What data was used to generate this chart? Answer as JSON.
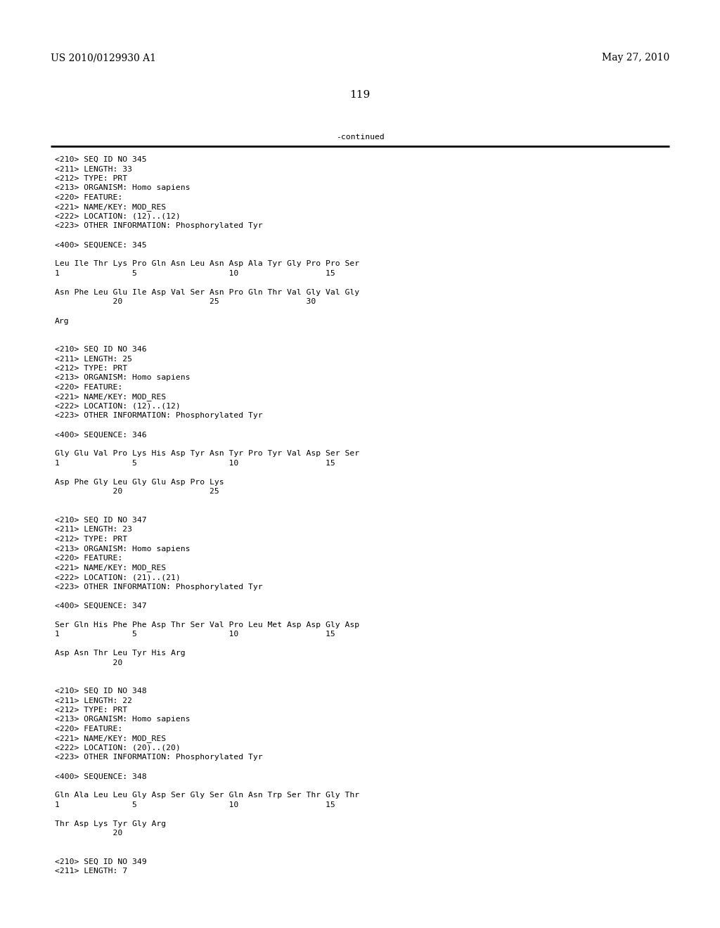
{
  "header_left": "US 2010/0129930 A1",
  "header_right": "May 27, 2010",
  "page_number": "119",
  "continued_text": "-continued",
  "background_color": "#ffffff",
  "text_color": "#000000",
  "font_size_header": 10.0,
  "font_size_body": 8.2,
  "font_size_page": 11.0,
  "content": [
    "<210> SEQ ID NO 345",
    "<211> LENGTH: 33",
    "<212> TYPE: PRT",
    "<213> ORGANISM: Homo sapiens",
    "<220> FEATURE:",
    "<221> NAME/KEY: MOD_RES",
    "<222> LOCATION: (12)..(12)",
    "<223> OTHER INFORMATION: Phosphorylated Tyr",
    "",
    "<400> SEQUENCE: 345",
    "",
    "Leu Ile Thr Lys Pro Gln Asn Leu Asn Asp Ala Tyr Gly Pro Pro Ser",
    "1               5                   10                  15",
    "",
    "Asn Phe Leu Glu Ile Asp Val Ser Asn Pro Gln Thr Val Gly Val Gly",
    "            20                  25                  30",
    "",
    "Arg",
    "",
    "",
    "<210> SEQ ID NO 346",
    "<211> LENGTH: 25",
    "<212> TYPE: PRT",
    "<213> ORGANISM: Homo sapiens",
    "<220> FEATURE:",
    "<221> NAME/KEY: MOD_RES",
    "<222> LOCATION: (12)..(12)",
    "<223> OTHER INFORMATION: Phosphorylated Tyr",
    "",
    "<400> SEQUENCE: 346",
    "",
    "Gly Glu Val Pro Lys His Asp Tyr Asn Tyr Pro Tyr Val Asp Ser Ser",
    "1               5                   10                  15",
    "",
    "Asp Phe Gly Leu Gly Glu Asp Pro Lys",
    "            20                  25",
    "",
    "",
    "<210> SEQ ID NO 347",
    "<211> LENGTH: 23",
    "<212> TYPE: PRT",
    "<213> ORGANISM: Homo sapiens",
    "<220> FEATURE:",
    "<221> NAME/KEY: MOD_RES",
    "<222> LOCATION: (21)..(21)",
    "<223> OTHER INFORMATION: Phosphorylated Tyr",
    "",
    "<400> SEQUENCE: 347",
    "",
    "Ser Gln His Phe Phe Asp Thr Ser Val Pro Leu Met Asp Asp Gly Asp",
    "1               5                   10                  15",
    "",
    "Asp Asn Thr Leu Tyr His Arg",
    "            20",
    "",
    "",
    "<210> SEQ ID NO 348",
    "<211> LENGTH: 22",
    "<212> TYPE: PRT",
    "<213> ORGANISM: Homo sapiens",
    "<220> FEATURE:",
    "<221> NAME/KEY: MOD_RES",
    "<222> LOCATION: (20)..(20)",
    "<223> OTHER INFORMATION: Phosphorylated Tyr",
    "",
    "<400> SEQUENCE: 348",
    "",
    "Gln Ala Leu Leu Gly Asp Ser Gly Ser Gln Asn Trp Ser Thr Gly Thr",
    "1               5                   10                  15",
    "",
    "Thr Asp Lys Tyr Gly Arg",
    "            20",
    "",
    "",
    "<210> SEQ ID NO 349",
    "<211> LENGTH: 7"
  ]
}
